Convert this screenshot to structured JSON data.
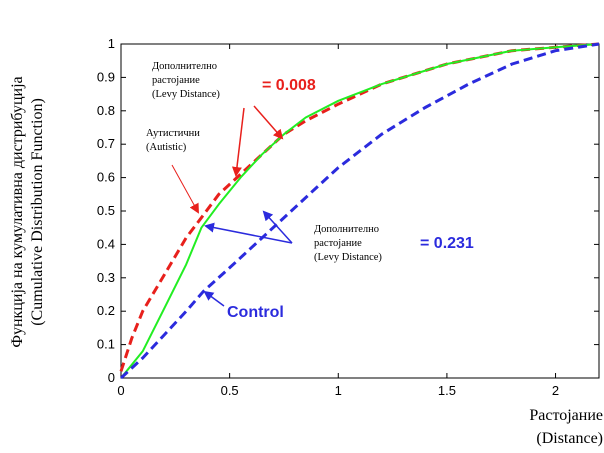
{
  "chart_data": {
    "type": "line",
    "title": "",
    "xlabel": [
      "Растојание",
      "(Distance)"
    ],
    "ylabel": [
      "Функција на кумулативна дистрибуција",
      "(Cumulative Distribution Function)"
    ],
    "xlim": [
      0,
      2.2
    ],
    "ylim": [
      0,
      1
    ],
    "xticks": [
      0,
      0.5,
      1,
      1.5,
      2
    ],
    "xtick_labels": [
      "0",
      "0.5",
      "1",
      "1.5",
      "2"
    ],
    "yticks": [
      0,
      0.1,
      0.2,
      0.3,
      0.4,
      0.5,
      0.6,
      0.7,
      0.8,
      0.9,
      1
    ],
    "ytick_labels": [
      "0",
      "0.1",
      "0.2",
      "0.3",
      "0.4",
      "0.5",
      "0.6",
      "0.7",
      "0.8",
      "0.9",
      "1"
    ],
    "grid": false,
    "series": [
      {
        "name": "Autistic",
        "color": "#e8201c",
        "dash": "dashed",
        "x": [
          0,
          0.05,
          0.1,
          0.2,
          0.3,
          0.37,
          0.45,
          0.55,
          0.65,
          0.75,
          0.85,
          1.0,
          1.2,
          1.5,
          1.8,
          2.0,
          2.2
        ],
        "y": [
          0.02,
          0.12,
          0.2,
          0.31,
          0.42,
          0.48,
          0.55,
          0.61,
          0.67,
          0.73,
          0.77,
          0.82,
          0.88,
          0.94,
          0.98,
          0.99,
          1.0
        ]
      },
      {
        "name": "",
        "color": "#22ee22",
        "dash": "solid",
        "x": [
          0,
          0.1,
          0.2,
          0.3,
          0.37,
          0.45,
          0.55,
          0.65,
          0.75,
          0.85,
          1.0,
          1.2,
          1.5,
          1.8,
          2.0,
          2.2
        ],
        "y": [
          0.0,
          0.08,
          0.21,
          0.34,
          0.45,
          0.52,
          0.6,
          0.67,
          0.73,
          0.78,
          0.83,
          0.88,
          0.94,
          0.98,
          0.99,
          1.0
        ]
      },
      {
        "name": "Control",
        "color": "#2b2bdd",
        "dash": "dashed",
        "x": [
          0,
          0.1,
          0.2,
          0.3,
          0.38,
          0.5,
          0.6,
          0.7,
          0.8,
          0.9,
          1.0,
          1.2,
          1.4,
          1.6,
          1.8,
          2.0,
          2.2
        ],
        "y": [
          0.0,
          0.06,
          0.13,
          0.2,
          0.26,
          0.33,
          0.39,
          0.45,
          0.51,
          0.57,
          0.63,
          0.73,
          0.81,
          0.88,
          0.94,
          0.98,
          1.0
        ]
      }
    ],
    "annotations": {
      "autistic_label": [
        "Аутистични",
        "(Autistic)"
      ],
      "levy_red_label": [
        "Дополнително",
        "растојание",
        "(Levy Distance)"
      ],
      "levy_red_value": "= 0.008",
      "levy_blue_label": [
        "Дополнително",
        "растојание",
        "(Levy Distance)"
      ],
      "levy_blue_value": "= 0.231",
      "control_label": "Control"
    }
  }
}
